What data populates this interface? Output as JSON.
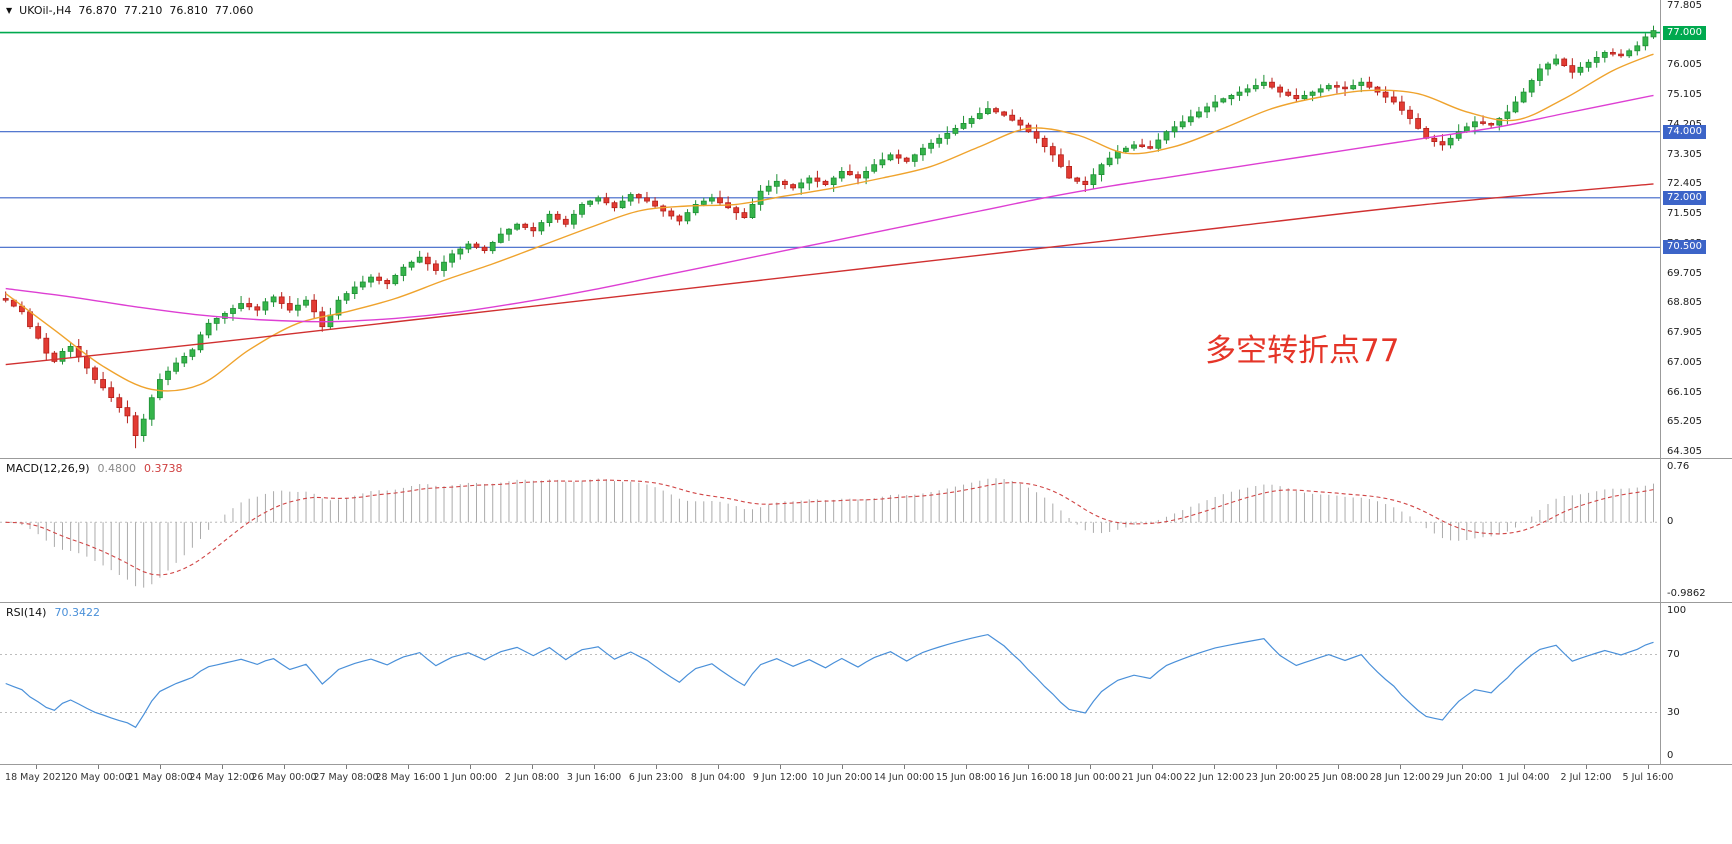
{
  "header": {
    "collapse_icon": "▼",
    "symbol_period": "UKOil-,H4",
    "open": "76.870",
    "high": "77.210",
    "low": "76.810",
    "close": "77.060"
  },
  "annotation": {
    "text": "多空转折点77",
    "color": "#e53528"
  },
  "macd_panel": {
    "label": "MACD(12,26,9)",
    "macd_value": "0.4800",
    "signal_value": "0.3738",
    "axis_max": "0.76",
    "axis_zero": "0",
    "axis_min": "-0.9862"
  },
  "rsi_panel": {
    "label": "RSI(14)",
    "value": "70.3422",
    "axis": [
      {
        "v": 100,
        "label": "100"
      },
      {
        "v": 70,
        "label": "70"
      },
      {
        "v": 30,
        "label": "30"
      },
      {
        "v": 0,
        "label": "0"
      }
    ]
  },
  "time_axis": {
    "labels": [
      "18 May 2021",
      "20 May 00:00",
      "21 May 08:00",
      "24 May 12:00",
      "26 May 00:00",
      "27 May 08:00",
      "28 May 16:00",
      "1 Jun 00:00",
      "2 Jun 08:00",
      "3 Jun 16:00",
      "6 Jun 23:00",
      "8 Jun 04:00",
      "9 Jun 12:00",
      "10 Jun 20:00",
      "14 Jun 00:00",
      "15 Jun 08:00",
      "16 Jun 16:00",
      "18 Jun 00:00",
      "21 Jun 04:00",
      "22 Jun 12:00",
      "23 Jun 20:00",
      "25 Jun 08:00",
      "28 Jun 12:00",
      "29 Jun 20:00",
      "1 Jul 04:00",
      "2 Jul 12:00",
      "5 Jul 16:00"
    ]
  },
  "chart_data": {
    "type": "candlestick",
    "title": "UKOil-,H4",
    "timeframe": "H4",
    "ohlc_current": {
      "open": 76.87,
      "high": 77.21,
      "low": 76.81,
      "close": 77.06
    },
    "y_axis": {
      "min": 64.305,
      "max": 77.805,
      "step": 0.9,
      "suppress": [
        76.905
      ]
    },
    "levels": [
      {
        "value": 77.0,
        "label": "77.000",
        "color": "#00a94f",
        "width": 1.6
      },
      {
        "value": 74.0,
        "label": "74.000",
        "color": "#3c64c8",
        "width": 1.1
      },
      {
        "value": 72.0,
        "label": "72.000",
        "color": "#3c64c8",
        "width": 1.1
      },
      {
        "value": 70.5,
        "label": "70.500",
        "color": "#3c64c8",
        "width": 1.1
      }
    ],
    "up_color": "#35b44a",
    "up_border": "#1e8f35",
    "down_color": "#e23b33",
    "down_border": "#b5201a",
    "first_open": 68.95,
    "closes": [
      68.9,
      68.72,
      68.55,
      68.1,
      67.75,
      67.3,
      67.05,
      67.35,
      67.5,
      67.2,
      66.85,
      66.5,
      66.25,
      65.95,
      65.65,
      65.4,
      64.8,
      65.3,
      65.95,
      66.5,
      66.75,
      67.0,
      67.2,
      67.4,
      67.85,
      68.2,
      68.35,
      68.5,
      68.65,
      68.8,
      68.7,
      68.6,
      68.85,
      69.0,
      68.8,
      68.6,
      68.75,
      68.9,
      68.55,
      68.1,
      68.45,
      68.9,
      69.1,
      69.3,
      69.45,
      69.6,
      69.5,
      69.4,
      69.65,
      69.9,
      70.05,
      70.2,
      70.0,
      69.8,
      70.05,
      70.3,
      70.45,
      70.6,
      70.5,
      70.4,
      70.65,
      70.9,
      71.05,
      71.2,
      71.1,
      71.0,
      71.25,
      71.5,
      71.35,
      71.2,
      71.5,
      71.8,
      71.9,
      72.0,
      71.85,
      71.7,
      71.9,
      72.1,
      72.0,
      71.9,
      71.75,
      71.6,
      71.45,
      71.3,
      71.55,
      71.8,
      71.9,
      72.0,
      71.85,
      71.7,
      71.55,
      71.4,
      71.8,
      72.2,
      72.35,
      72.5,
      72.4,
      72.3,
      72.45,
      72.6,
      72.5,
      72.4,
      72.6,
      72.8,
      72.7,
      72.6,
      72.8,
      73.0,
      73.15,
      73.3,
      73.2,
      73.1,
      73.3,
      73.5,
      73.65,
      73.8,
      73.95,
      74.1,
      74.25,
      74.4,
      74.55,
      74.7,
      74.6,
      74.5,
      74.35,
      74.2,
      74.0,
      73.8,
      73.55,
      73.3,
      72.95,
      72.6,
      72.5,
      72.4,
      72.7,
      73.0,
      73.2,
      73.4,
      73.5,
      73.6,
      73.55,
      73.5,
      73.75,
      74.0,
      74.15,
      74.3,
      74.45,
      74.6,
      74.75,
      74.9,
      75.0,
      75.1,
      75.2,
      75.3,
      75.4,
      75.5,
      75.35,
      75.2,
      75.1,
      75.0,
      75.1,
      75.2,
      75.3,
      75.4,
      75.35,
      75.3,
      75.4,
      75.5,
      75.35,
      75.2,
      75.05,
      74.9,
      74.65,
      74.4,
      74.1,
      73.8,
      73.7,
      73.6,
      73.8,
      74.0,
      74.15,
      74.3,
      74.25,
      74.2,
      74.4,
      74.6,
      74.9,
      75.2,
      75.55,
      75.9,
      76.05,
      76.2,
      76.0,
      75.8,
      75.95,
      76.1,
      76.25,
      76.4,
      76.35,
      76.3,
      76.45,
      76.6,
      76.87,
      77.06
    ],
    "last_candle": [
      76.87,
      77.21,
      76.81,
      77.06
    ],
    "lowest_low": {
      "index": 16,
      "price": 64.42
    },
    "ma": [
      {
        "name": "fast",
        "color": "#efa32d",
        "points": [
          [
            0,
            69.1
          ],
          [
            6,
            68.0
          ],
          [
            12,
            66.9
          ],
          [
            18,
            66.2
          ],
          [
            24,
            66.35
          ],
          [
            30,
            67.4
          ],
          [
            36,
            68.2
          ],
          [
            42,
            68.55
          ],
          [
            48,
            68.95
          ],
          [
            54,
            69.5
          ],
          [
            60,
            70.0
          ],
          [
            66,
            70.55
          ],
          [
            72,
            71.1
          ],
          [
            78,
            71.6
          ],
          [
            84,
            71.75
          ],
          [
            90,
            71.8
          ],
          [
            96,
            72.05
          ],
          [
            102,
            72.3
          ],
          [
            108,
            72.6
          ],
          [
            114,
            72.95
          ],
          [
            120,
            73.55
          ],
          [
            126,
            74.1
          ],
          [
            132,
            73.9
          ],
          [
            138,
            73.35
          ],
          [
            144,
            73.55
          ],
          [
            150,
            74.1
          ],
          [
            156,
            74.7
          ],
          [
            162,
            75.05
          ],
          [
            168,
            75.25
          ],
          [
            174,
            75.15
          ],
          [
            180,
            74.6
          ],
          [
            186,
            74.35
          ],
          [
            192,
            75.0
          ],
          [
            198,
            75.85
          ],
          [
            203,
            76.35
          ]
        ]
      },
      {
        "name": "medium",
        "color": "#dd3fd3",
        "points": [
          [
            0,
            69.25
          ],
          [
            8,
            69.0
          ],
          [
            16,
            68.7
          ],
          [
            24,
            68.45
          ],
          [
            32,
            68.3
          ],
          [
            40,
            68.25
          ],
          [
            48,
            68.35
          ],
          [
            56,
            68.55
          ],
          [
            64,
            68.85
          ],
          [
            72,
            69.2
          ],
          [
            80,
            69.6
          ],
          [
            88,
            70.0
          ],
          [
            96,
            70.4
          ],
          [
            104,
            70.8
          ],
          [
            112,
            71.2
          ],
          [
            120,
            71.6
          ],
          [
            128,
            72.0
          ],
          [
            136,
            72.35
          ],
          [
            144,
            72.65
          ],
          [
            152,
            72.95
          ],
          [
            160,
            73.25
          ],
          [
            168,
            73.55
          ],
          [
            176,
            73.85
          ],
          [
            184,
            74.15
          ],
          [
            192,
            74.55
          ],
          [
            200,
            74.95
          ],
          [
            203,
            75.1
          ]
        ]
      },
      {
        "name": "slow",
        "color": "#d03030",
        "points": [
          [
            0,
            66.95
          ],
          [
            25,
            67.6
          ],
          [
            50,
            68.3
          ],
          [
            75,
            69.0
          ],
          [
            100,
            69.7
          ],
          [
            125,
            70.4
          ],
          [
            150,
            71.1
          ],
          [
            175,
            71.8
          ],
          [
            203,
            72.42
          ]
        ]
      }
    ],
    "indicators": {
      "macd": {
        "params": [
          12,
          26,
          9
        ],
        "current": 0.48,
        "signal": 0.3738,
        "hist_color": "#ababab",
        "signal_color": "#d04545",
        "range": [
          -0.9862,
          0.76
        ]
      },
      "rsi": {
        "period": 14,
        "current": 70.3422,
        "color": "#4a90d9",
        "levels": [
          70,
          30
        ],
        "range": [
          0,
          100
        ]
      }
    }
  }
}
